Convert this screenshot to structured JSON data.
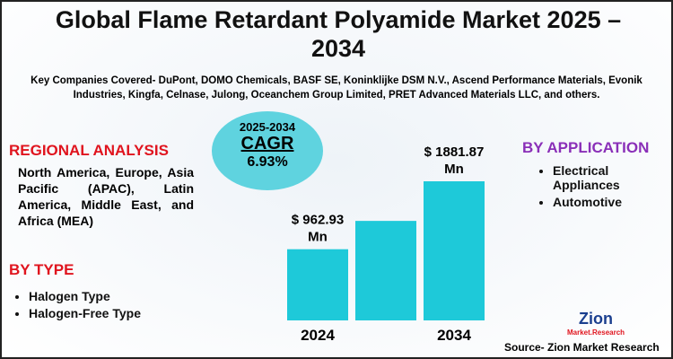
{
  "title": "Global Flame Retardant Polyamide Market 2025 – 2034",
  "companies": "Key Companies Covered- DuPont, DOMO Chemicals, BASF SE, Koninklijke DSM N.V., Ascend Performance Materials, Evonik Industries, Kingfa, Celnase, Julong, Oceanchem Group Limited, PRET Advanced Materials LLC, and others.",
  "regional": {
    "heading": "REGIONAL ANALYSIS",
    "text": "North America, Europe, Asia Pacific (APAC), Latin America, Middle East, and Africa (MEA)"
  },
  "type_section": {
    "heading": "BY TYPE",
    "items": [
      "Halogen Type",
      "Halogen-Free Type"
    ]
  },
  "application": {
    "heading": "BY APPLICATION",
    "items": [
      "Electrical Appliances",
      "Automotive"
    ]
  },
  "cagr": {
    "period": "2025-2034",
    "label": "CAGR",
    "value": "6.93%"
  },
  "logo": {
    "name": "Zion",
    "sub": "Market.Research"
  },
  "source": "Source- Zion Market Research",
  "chart_data": {
    "type": "bar",
    "categories": [
      "2024",
      null,
      "2034"
    ],
    "values": [
      962.93,
      1346,
      1881.87
    ],
    "value_labels": [
      "$ 962.93 Mn",
      null,
      "$ 1881.87 Mn"
    ],
    "color": "#1ec9d9"
  }
}
